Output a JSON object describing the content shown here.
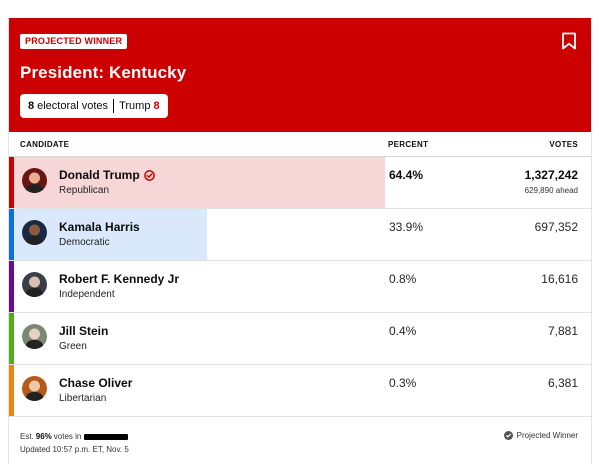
{
  "header": {
    "badge": "PROJECTED WINNER",
    "title": "President: Kentucky",
    "ev_count": "8",
    "ev_label": "electoral votes",
    "ev_winner_name": "Trump",
    "ev_winner_votes": "8",
    "accent_color": "#cc0000"
  },
  "columns": {
    "candidate": "CANDIDATE",
    "percent": "PERCENT",
    "votes": "VOTES"
  },
  "candidates": [
    {
      "name": "Donald Trump",
      "party": "Republican",
      "percent": "64.4%",
      "share": 64.4,
      "votes": "1,327,242",
      "ahead": "629,890 ahead",
      "winner": true,
      "color": "#cc0000",
      "bar_color": "#f6d6d6"
    },
    {
      "name": "Kamala Harris",
      "party": "Democratic",
      "percent": "33.9%",
      "share": 33.9,
      "votes": "697,352",
      "winner": false,
      "color": "#0b6fde",
      "bar_color": "#d9e8fa"
    },
    {
      "name": "Robert F. Kennedy Jr",
      "party": "Independent",
      "percent": "0.8%",
      "share": 0.8,
      "votes": "16,616",
      "winner": false,
      "color": "#6a0c8c"
    },
    {
      "name": "Jill Stein",
      "party": "Green",
      "percent": "0.4%",
      "share": 0.4,
      "votes": "7,881",
      "winner": false,
      "color": "#4fae1a"
    },
    {
      "name": "Chase Oliver",
      "party": "Libertarian",
      "percent": "0.3%",
      "share": 0.3,
      "votes": "6,381",
      "winner": false,
      "color": "#f3820f"
    }
  ],
  "footer": {
    "est_prefix": "Est.",
    "est_pct": "96%",
    "est_suffix": "votes in",
    "updated": "Updated 10:57 p.m. ET, Nov. 5",
    "legend": "Projected Winner"
  }
}
